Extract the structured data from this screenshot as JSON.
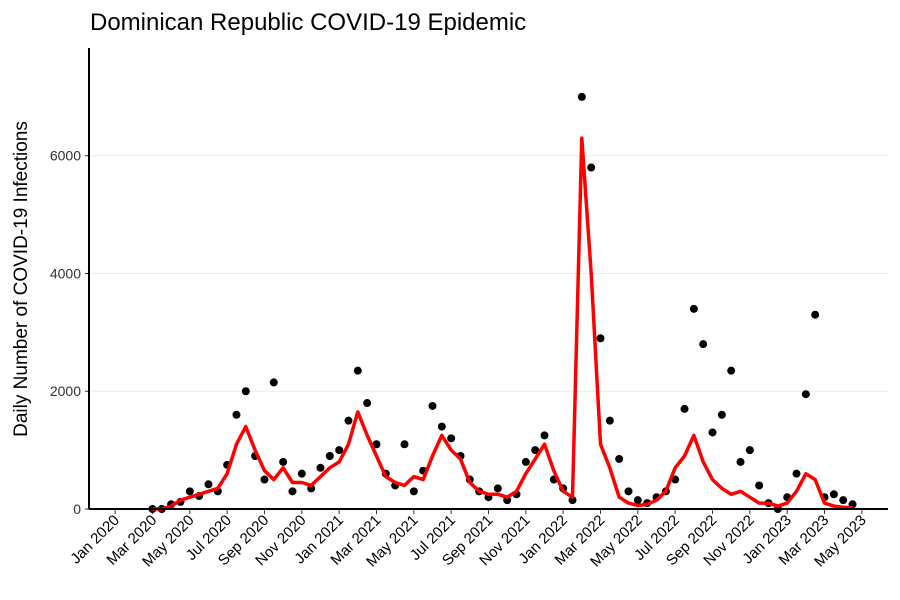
{
  "chart_data": {
    "type": "scatter",
    "title": "Dominican Republic COVID-19 Epidemic",
    "y_label": "Daily Number of COVID-19 Infections",
    "x": [
      2,
      2.5,
      3,
      3.5,
      4,
      4.5,
      5,
      5.5,
      6,
      6.5,
      7,
      7.5,
      8,
      8.5,
      9,
      9.5,
      10,
      10.5,
      11,
      11.5,
      12,
      12.5,
      13,
      13.5,
      14,
      14.5,
      15,
      15.5,
      16,
      16.5,
      17,
      17.5,
      18,
      18.5,
      19,
      19.5,
      20,
      20.5,
      21,
      21.5,
      22,
      22.5,
      23,
      23.5,
      24,
      24.5,
      25,
      25.5,
      26,
      26.5,
      27,
      27.5,
      28,
      28.5,
      29,
      29.5,
      30,
      30.5,
      31,
      31.5,
      32,
      32.5,
      33,
      33.5,
      34,
      34.5,
      35,
      35.5,
      36,
      36.5,
      37,
      37.5,
      38,
      38.5,
      39,
      39.5
    ],
    "series": [
      {
        "type": "scatter",
        "color": "#000000",
        "values": [
          0,
          0,
          80,
          120,
          300,
          220,
          420,
          300,
          750,
          1600,
          2000,
          900,
          500,
          2150,
          800,
          300,
          600,
          350,
          700,
          900,
          1000,
          1500,
          2350,
          1800,
          1100,
          600,
          400,
          1100,
          300,
          650,
          1750,
          1400,
          1200,
          900,
          500,
          300,
          200,
          350,
          150,
          250,
          800,
          1000,
          1250,
          500,
          350,
          150,
          7000,
          5800,
          2900,
          1500,
          850,
          300,
          150,
          100,
          200,
          300,
          500,
          1700,
          3400,
          2800,
          1300,
          1600,
          2350,
          800,
          1000,
          400,
          100,
          0,
          200,
          600,
          1950,
          3300,
          200,
          250,
          150,
          80
        ]
      },
      {
        "type": "line",
        "color": "#ff0000",
        "values": [
          0,
          0,
          50,
          150,
          200,
          250,
          300,
          350,
          600,
          1100,
          1400,
          1000,
          650,
          500,
          700,
          450,
          450,
          400,
          550,
          700,
          800,
          1100,
          1650,
          1250,
          900,
          550,
          450,
          400,
          550,
          500,
          900,
          1250,
          1000,
          850,
          450,
          300,
          250,
          250,
          200,
          300,
          600,
          850,
          1100,
          650,
          300,
          200,
          6300,
          4000,
          1100,
          700,
          200,
          100,
          60,
          80,
          150,
          300,
          700,
          900,
          1250,
          800,
          500,
          350,
          250,
          300,
          200,
          100,
          100,
          50,
          100,
          300,
          600,
          500,
          100,
          50,
          30,
          20
        ]
      }
    ],
    "xlim": [
      -1.4,
      41.4
    ],
    "xticks": [
      {
        "value": 0,
        "label": "Jan 2020"
      },
      {
        "value": 2,
        "label": "Mar 2020"
      },
      {
        "value": 4,
        "label": "May 2020"
      },
      {
        "value": 6,
        "label": "Jul 2020"
      },
      {
        "value": 8,
        "label": "Sep 2020"
      },
      {
        "value": 10,
        "label": "Nov 2020"
      },
      {
        "value": 12,
        "label": "Jan 2021"
      },
      {
        "value": 14,
        "label": "Mar 2021"
      },
      {
        "value": 16,
        "label": "May 2021"
      },
      {
        "value": 18,
        "label": "Jul 2021"
      },
      {
        "value": 20,
        "label": "Sep 2021"
      },
      {
        "value": 22,
        "label": "Nov 2021"
      },
      {
        "value": 24,
        "label": "Jan 2022"
      },
      {
        "value": 26,
        "label": "Mar 2022"
      },
      {
        "value": 28,
        "label": "May 2022"
      },
      {
        "value": 30,
        "label": "Jul 2022"
      },
      {
        "value": 32,
        "label": "Sep 2022"
      },
      {
        "value": 34,
        "label": "Nov 2022"
      },
      {
        "value": 36,
        "label": "Jan 2023"
      },
      {
        "value": 38,
        "label": "Mar 2023"
      },
      {
        "value": 40,
        "label": "May 2023"
      }
    ],
    "ylim": [
      0,
      7830
    ],
    "yticks": [
      0,
      2000,
      4000,
      6000
    ],
    "grid": true
  }
}
